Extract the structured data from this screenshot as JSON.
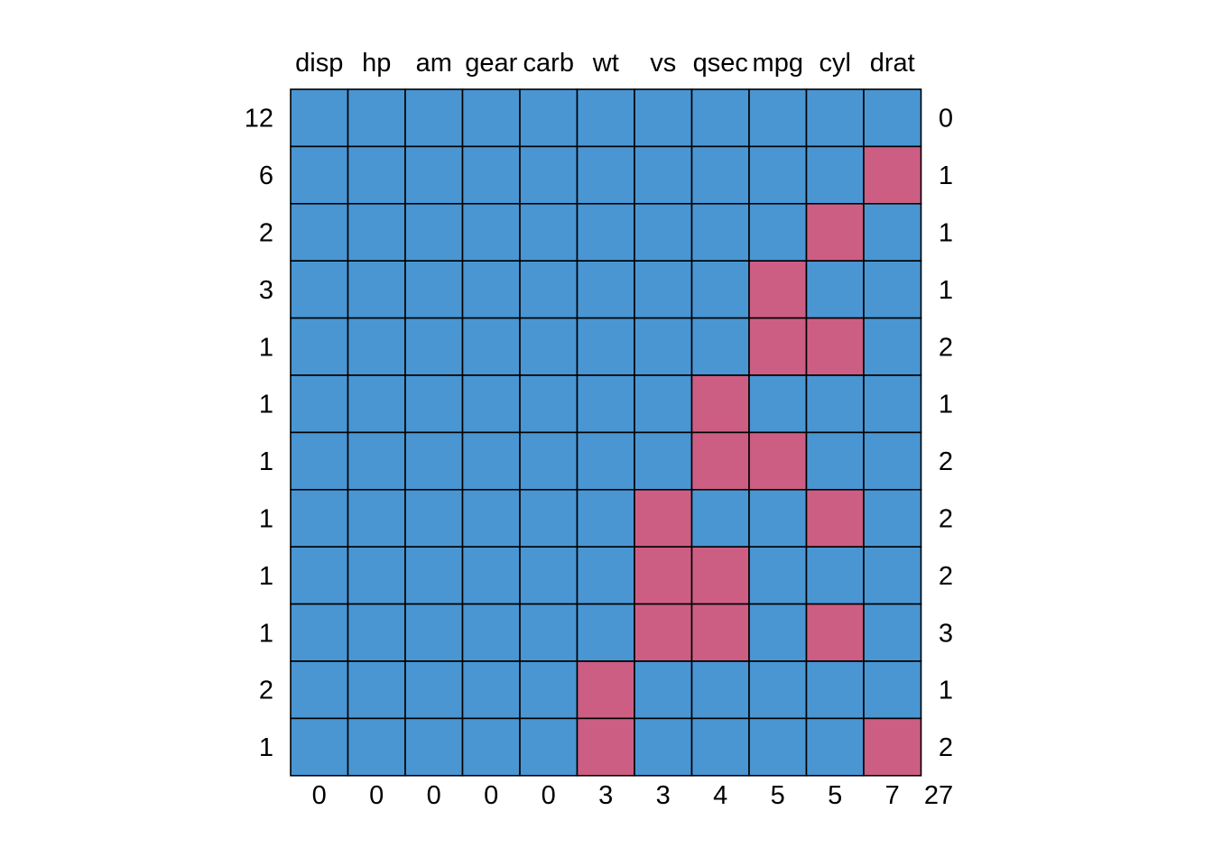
{
  "chart_data": {
    "type": "heatmap",
    "columns": [
      "disp",
      "hp",
      "am",
      "gear",
      "carb",
      "wt",
      "vs",
      "qsec",
      "mpg",
      "cyl",
      "drat"
    ],
    "row_counts": [
      "12",
      "6",
      "2",
      "3",
      "1",
      "1",
      "1",
      "1",
      "1",
      "1",
      "2",
      "1"
    ],
    "row_missing": [
      "0",
      "1",
      "1",
      "1",
      "2",
      "1",
      "2",
      "2",
      "2",
      "3",
      "1",
      "2"
    ],
    "column_missing": [
      "0",
      "0",
      "0",
      "0",
      "0",
      "3",
      "3",
      "4",
      "5",
      "5",
      "7"
    ],
    "total_missing": "27",
    "matrix": [
      [
        0,
        0,
        0,
        0,
        0,
        0,
        0,
        0,
        0,
        0,
        0
      ],
      [
        0,
        0,
        0,
        0,
        0,
        0,
        0,
        0,
        0,
        0,
        1
      ],
      [
        0,
        0,
        0,
        0,
        0,
        0,
        0,
        0,
        0,
        1,
        0
      ],
      [
        0,
        0,
        0,
        0,
        0,
        0,
        0,
        0,
        1,
        0,
        0
      ],
      [
        0,
        0,
        0,
        0,
        0,
        0,
        0,
        0,
        1,
        1,
        0
      ],
      [
        0,
        0,
        0,
        0,
        0,
        0,
        0,
        1,
        0,
        0,
        0
      ],
      [
        0,
        0,
        0,
        0,
        0,
        0,
        0,
        1,
        1,
        0,
        0
      ],
      [
        0,
        0,
        0,
        0,
        0,
        0,
        1,
        0,
        0,
        1,
        0
      ],
      [
        0,
        0,
        0,
        0,
        0,
        0,
        1,
        1,
        0,
        0,
        0
      ],
      [
        0,
        0,
        0,
        0,
        0,
        0,
        1,
        1,
        0,
        1,
        0
      ],
      [
        0,
        0,
        0,
        0,
        0,
        1,
        0,
        0,
        0,
        0,
        0
      ],
      [
        0,
        0,
        0,
        0,
        0,
        1,
        0,
        0,
        0,
        0,
        1
      ]
    ],
    "colors": {
      "observed": "#4a96d3",
      "missing": "#cc5e84",
      "border": "#000000"
    }
  }
}
